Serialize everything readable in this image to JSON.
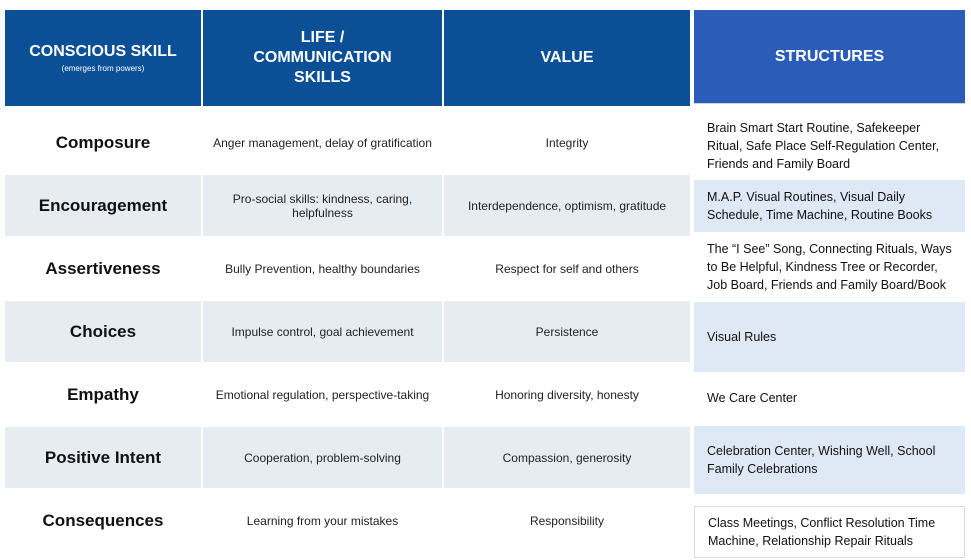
{
  "headers": {
    "skill": "CONSCIOUS SKILL",
    "skill_sub": "(emerges from powers)",
    "life": "LIFE / COMMUNICATION SKILLS",
    "value": "VALUE",
    "structures": "STRUCTURES"
  },
  "rows": [
    {
      "skill": "Composure",
      "life": "Anger management, delay of gratification",
      "value": "Integrity",
      "structures": "Brain Smart Start Routine, Safekeeper Ritual, Safe Place Self-Regulation  Center, Friends and Family Board"
    },
    {
      "skill": "Encouragement",
      "life": "Pro-social skills: kindness, caring, helpfulness",
      "value": "Interdependence, optimism, gratitude",
      "structures": "M.A.P. Visual Routines, Visual Daily Schedule, Time Machine,  Routine Books"
    },
    {
      "skill": "Assertiveness",
      "life": "Bully Prevention, healthy boundaries",
      "value": "Respect for self and others",
      "structures": "The “I See” Song, Connecting Rituals, Ways to Be Helpful, Kindness  Tree or  Recorder, Job Board, Friends and Family Board/Book"
    },
    {
      "skill": "Choices",
      "life": "Impulse control, goal achievement",
      "value": "Persistence",
      "structures": "Visual Rules"
    },
    {
      "skill": "Empathy",
      "life": "Emotional regulation, perspective-taking",
      "value": "Honoring diversity, honesty",
      "structures": "We Care Center"
    },
    {
      "skill": "Positive Intent",
      "life": "Cooperation, problem-solving",
      "value": "Compassion, generosity",
      "structures": "Celebration Center, Wishing Well, School Family Celebrations"
    },
    {
      "skill": "Consequences",
      "life": "Learning from your mistakes",
      "value": "Responsibility",
      "structures": "Class Meetings, Conflict Resolution Time Machine,  Relationship Repair  Rituals"
    }
  ]
}
